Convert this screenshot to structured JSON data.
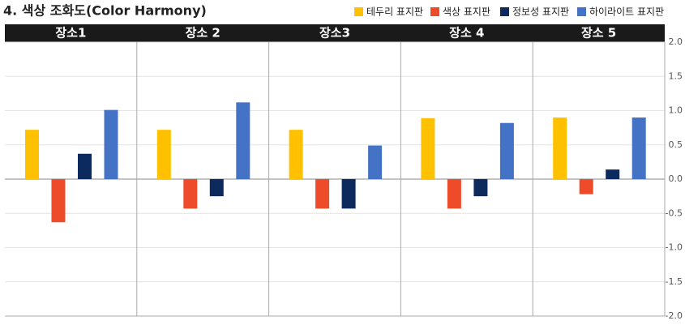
{
  "chart_data": {
    "type": "bar",
    "title": "4. 색상 조화도(Color Harmony)",
    "categories": [
      "장소1",
      "장소 2",
      "장소3",
      "장소 4",
      "장소 5"
    ],
    "series": [
      {
        "name": "테두리 표지판",
        "color": "#FFC000",
        "values": [
          0.72,
          0.72,
          0.72,
          0.89,
          0.9
        ]
      },
      {
        "name": "색상 표지판",
        "color": "#EE4B2B",
        "values": [
          -0.63,
          -0.43,
          -0.43,
          -0.43,
          -0.22
        ]
      },
      {
        "name": "정보성 표지판",
        "color": "#0D2A5E",
        "values": [
          0.37,
          -0.25,
          -0.43,
          -0.25,
          0.14
        ]
      },
      {
        "name": "하이라이트 표지판",
        "color": "#4472C4",
        "values": [
          1.01,
          1.12,
          0.49,
          0.82,
          0.9
        ]
      }
    ],
    "ylim": [
      -2,
      2
    ],
    "yticks": [
      {
        "value": -2,
        "label": "-2.0"
      },
      {
        "value": -1.5,
        "label": "-1.5"
      },
      {
        "value": -1,
        "label": "-1.0"
      },
      {
        "value": -0.5,
        "label": "-0.5"
      },
      {
        "value": 0,
        "label": "0.0"
      },
      {
        "value": 0.5,
        "label": "0.5"
      },
      {
        "value": 1,
        "label": "1.0"
      },
      {
        "value": 1.5,
        "label": "1.5"
      },
      {
        "value": 2,
        "label": "2.0"
      }
    ],
    "grid": true
  }
}
